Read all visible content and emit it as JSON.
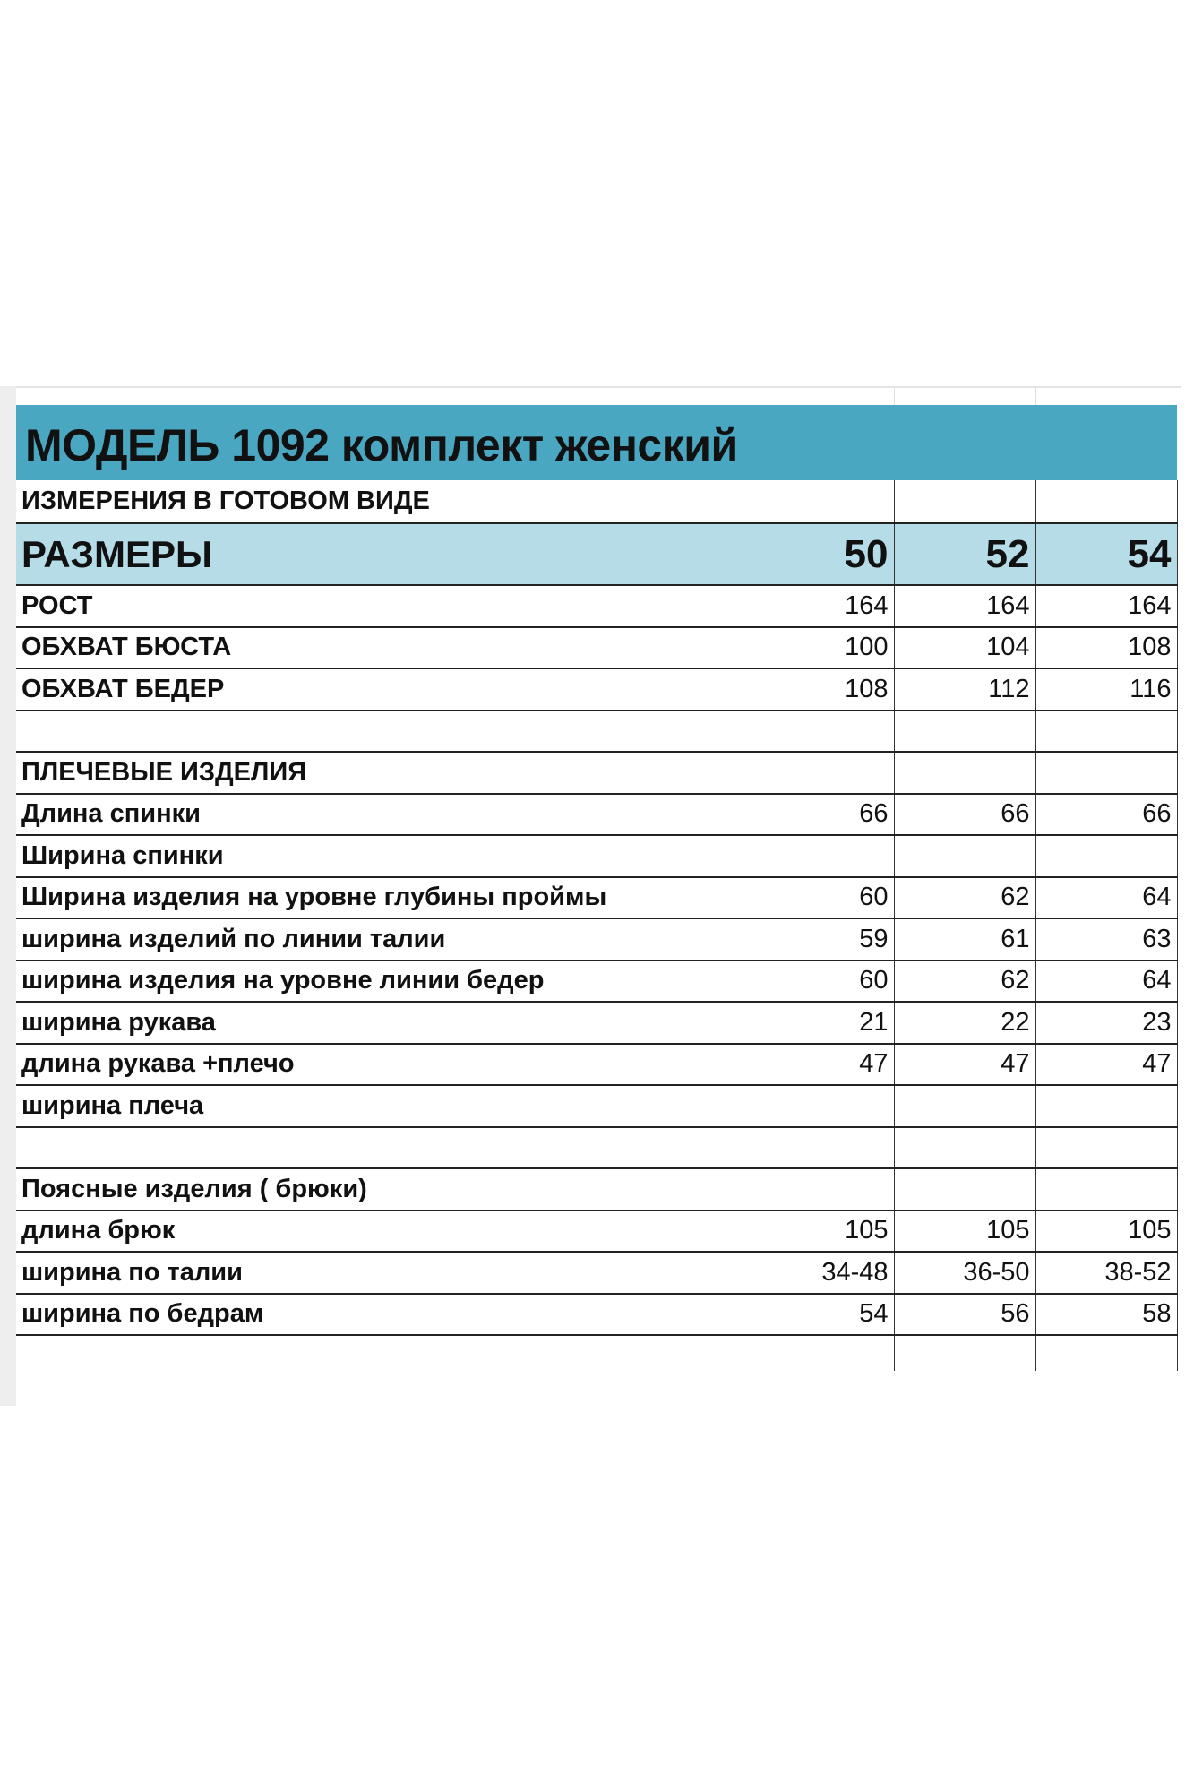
{
  "title": "МОДЕЛЬ 1092 комплект женский",
  "subtitle": "ИЗМЕРЕНИЯ В ГОТОВОМ ВИДЕ",
  "sizes_label": "РАЗМЕРЫ",
  "sizes": [
    "50",
    "52",
    "54"
  ],
  "colors": {
    "title_band": "#4aa7c1",
    "sizes_band": "#b5dce7"
  },
  "rows": [
    {
      "label": "РОСТ",
      "values": [
        "164",
        "164",
        "164"
      ]
    },
    {
      "label": "ОБХВАТ БЮСТА",
      "values": [
        "100",
        "104",
        "108"
      ]
    },
    {
      "label": "ОБХВАТ БЕДЕР",
      "values": [
        "108",
        "112",
        "116"
      ]
    },
    {
      "label": "",
      "values": [
        "",
        "",
        ""
      ]
    },
    {
      "label": "ПЛЕЧЕВЫЕ ИЗДЕЛИЯ",
      "values": [
        "",
        "",
        ""
      ]
    },
    {
      "label": "Длина спинки",
      "values": [
        "66",
        "66",
        "66"
      ]
    },
    {
      "label": "Ширина спинки",
      "values": [
        "",
        "",
        ""
      ]
    },
    {
      "label": "Ширина изделия на уровне глубины проймы",
      "values": [
        "60",
        "62",
        "64"
      ]
    },
    {
      "label": "ширина изделий по линии талии",
      "values": [
        "59",
        "61",
        "63"
      ]
    },
    {
      "label": "ширина изделия на уровне линии бедер",
      "values": [
        "60",
        "62",
        "64"
      ]
    },
    {
      "label": "ширина рукава",
      "values": [
        "21",
        "22",
        "23"
      ]
    },
    {
      "label": "длина рукава +плечо",
      "values": [
        "47",
        "47",
        "47"
      ]
    },
    {
      "label": "ширина плеча",
      "values": [
        "",
        "",
        ""
      ]
    },
    {
      "label": "",
      "values": [
        "",
        "",
        ""
      ]
    },
    {
      "label": "Поясные изделия ( брюки)",
      "values": [
        "",
        "",
        ""
      ]
    },
    {
      "label": "длина  брюк",
      "values": [
        "105",
        "105",
        "105"
      ]
    },
    {
      "label": "ширина   по талии",
      "values": [
        "34-48",
        "36-50",
        "38-52"
      ]
    },
    {
      "label": "ширина по бедрам",
      "values": [
        "54",
        "56",
        "58"
      ]
    }
  ]
}
